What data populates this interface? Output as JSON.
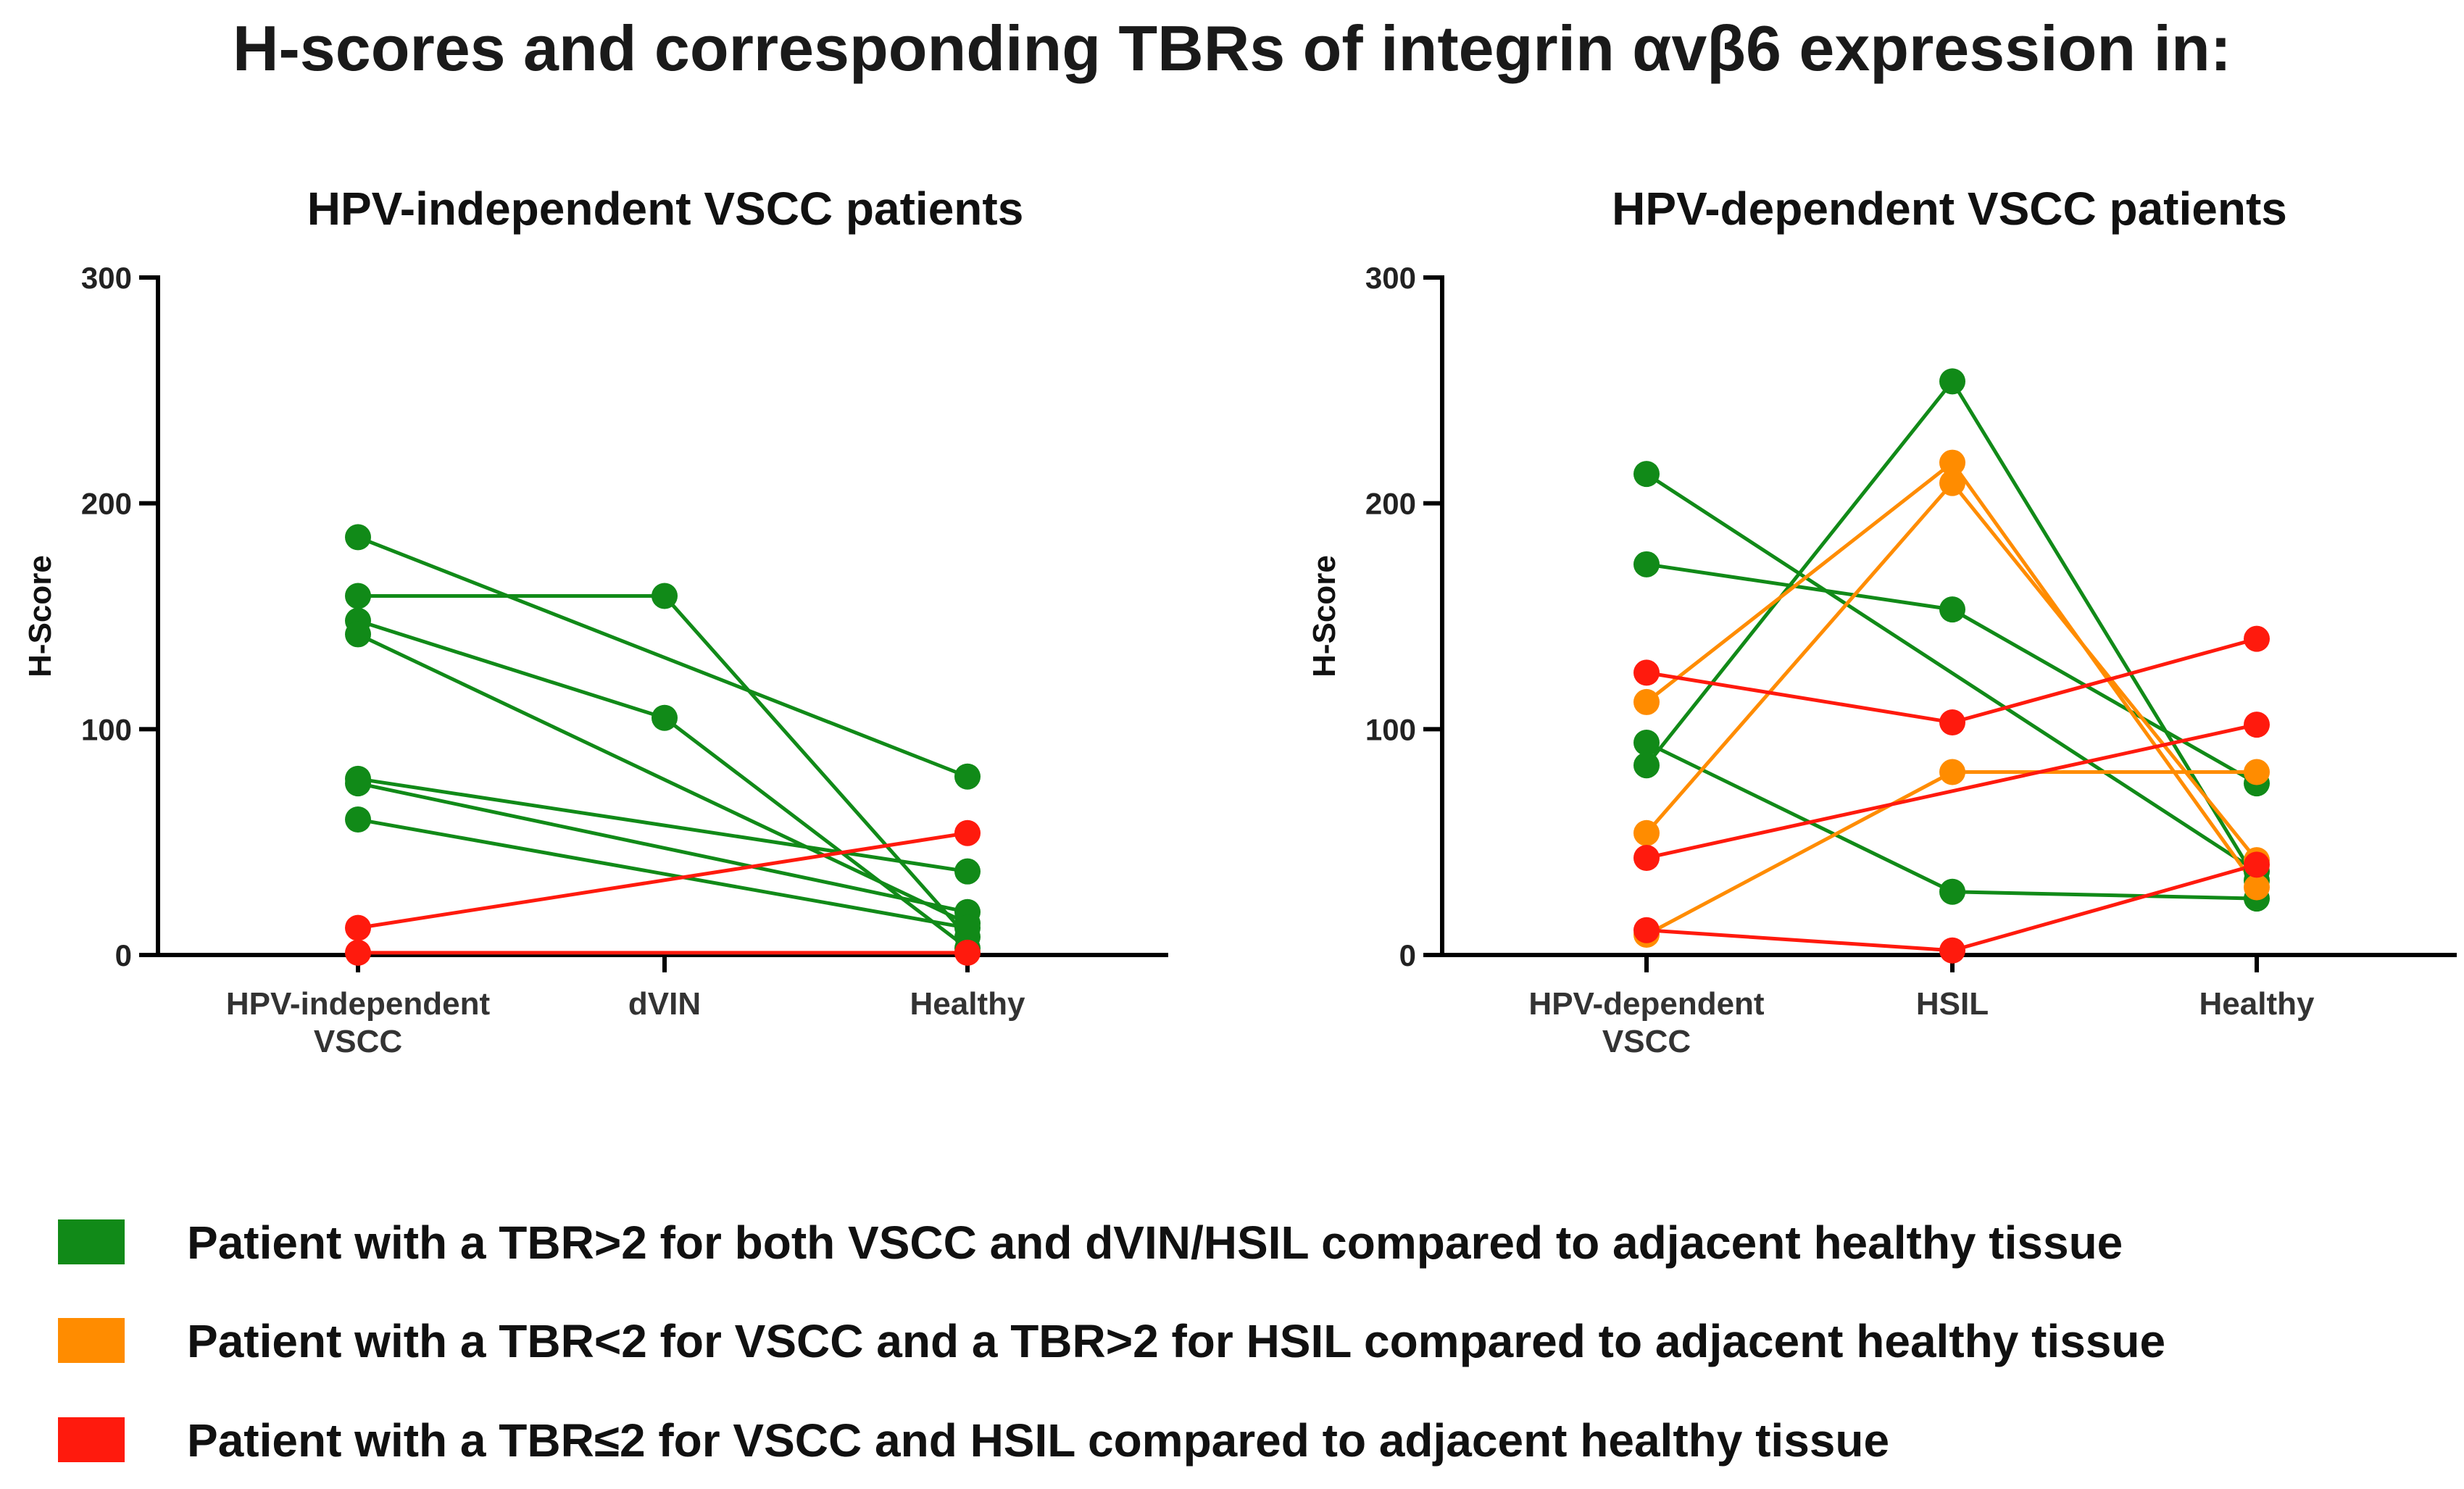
{
  "title": "H-scores and corresponding TBRs of integrin αvβ6 expression in:",
  "colors": {
    "green": "#118a18",
    "orange": "#ff8c00",
    "red": "#ff1a0d",
    "axis": "#000000"
  },
  "legend": [
    {
      "color": "#118a18",
      "text": "Patient with a TBR>2 for both VSCC and dVIN/HSIL compared to adjacent healthy tissue"
    },
    {
      "color": "#ff8c00",
      "text": "Patient with a TBR<2 for VSCC and a TBR>2 for HSIL compared to adjacent healthy tissue"
    },
    {
      "color": "#ff1a0d",
      "text": "Patient with a TBR≤2 for VSCC and HSIL compared to adjacent healthy tissue"
    }
  ],
  "chart_data": [
    {
      "type": "line",
      "title": "HPV-independent VSCC patients",
      "ylabel": "H-Score",
      "xlabel": "",
      "ylim": [
        0,
        300
      ],
      "yticks": [
        "0",
        "100",
        "200",
        "300"
      ],
      "categories": [
        [
          "HPV-independent",
          "VSCC"
        ],
        [
          "dVIN"
        ],
        [
          "Healthy"
        ]
      ],
      "series": [
        {
          "color": "green",
          "values": [
            185,
            null,
            79
          ]
        },
        {
          "color": "green",
          "values": [
            159,
            159,
            8
          ]
        },
        {
          "color": "green",
          "values": [
            148,
            105,
            3
          ]
        },
        {
          "color": "green",
          "values": [
            142,
            null,
            14
          ]
        },
        {
          "color": "green",
          "values": [
            78,
            null,
            37
          ]
        },
        {
          "color": "green",
          "values": [
            76,
            null,
            19
          ]
        },
        {
          "color": "green",
          "values": [
            60,
            null,
            12
          ]
        },
        {
          "color": "red",
          "values": [
            12,
            null,
            54
          ]
        },
        {
          "color": "red",
          "values": [
            1,
            null,
            1
          ]
        }
      ]
    },
    {
      "type": "line",
      "title": "HPV-dependent VSCC patients",
      "ylabel": "H-Score",
      "xlabel": "",
      "ylim": [
        0,
        300
      ],
      "yticks": [
        "0",
        "100",
        "200",
        "300"
      ],
      "categories": [
        [
          "HPV-dependent",
          "VSCC"
        ],
        [
          "HSIL"
        ],
        [
          "Healthy"
        ]
      ],
      "series": [
        {
          "color": "green",
          "values": [
            213,
            null,
            37
          ]
        },
        {
          "color": "green",
          "values": [
            173,
            153,
            76
          ]
        },
        {
          "color": "green",
          "values": [
            94,
            28,
            25
          ]
        },
        {
          "color": "green",
          "values": [
            84,
            254,
            33
          ]
        },
        {
          "color": "orange",
          "values": [
            112,
            218,
            30
          ]
        },
        {
          "color": "orange",
          "values": [
            54,
            209,
            42
          ]
        },
        {
          "color": "orange",
          "values": [
            9,
            81,
            81
          ]
        },
        {
          "color": "red",
          "values": [
            125,
            103,
            140
          ]
        },
        {
          "color": "red",
          "values": [
            43,
            null,
            102
          ]
        },
        {
          "color": "red",
          "values": [
            11,
            2,
            40
          ]
        }
      ]
    }
  ]
}
